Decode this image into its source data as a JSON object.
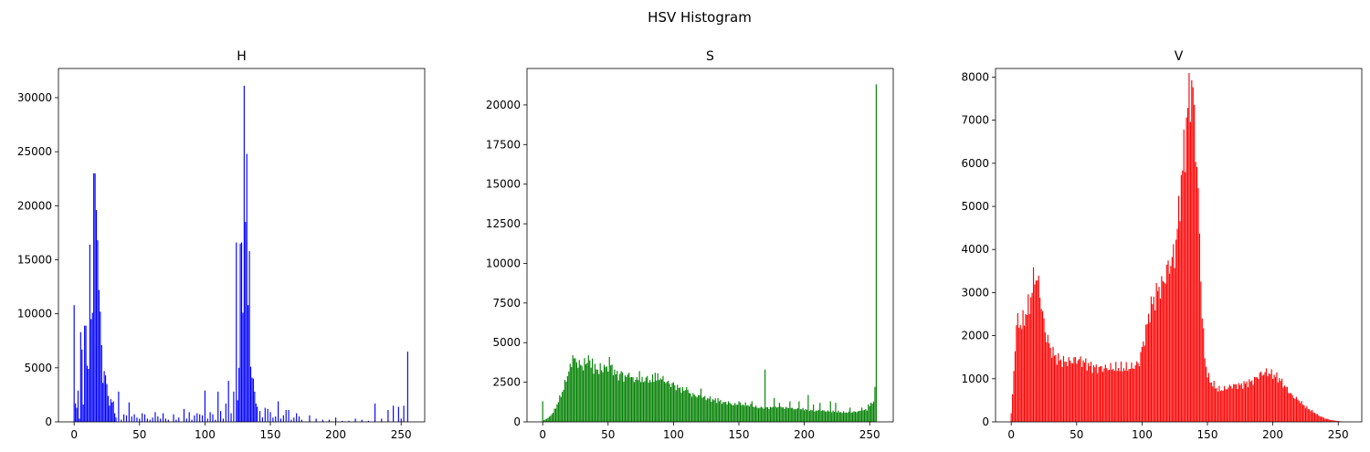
{
  "suptitle": "HSV Histogram",
  "chart_data": [
    {
      "type": "bar",
      "title": "H",
      "xlabel": "",
      "ylabel": "",
      "color": "#0000ff",
      "xlim": [
        -12,
        268
      ],
      "ylim": [
        0,
        32700
      ],
      "x_ticks": [
        0,
        50,
        100,
        150,
        200,
        250
      ],
      "y_ticks": [
        0,
        5000,
        10000,
        15000,
        20000,
        25000,
        30000
      ],
      "points": [
        [
          0,
          10800
        ],
        [
          1,
          1700
        ],
        [
          2,
          1300
        ],
        [
          3,
          2900
        ],
        [
          4,
          300
        ],
        [
          5,
          8300
        ],
        [
          6,
          6700
        ],
        [
          7,
          1600
        ],
        [
          8,
          8900
        ],
        [
          9,
          8900
        ],
        [
          10,
          5200
        ],
        [
          11,
          4900
        ],
        [
          12,
          16400
        ],
        [
          13,
          9500
        ],
        [
          14,
          10100
        ],
        [
          15,
          23000
        ],
        [
          16,
          23000
        ],
        [
          17,
          19600
        ],
        [
          18,
          16800
        ],
        [
          19,
          12200
        ],
        [
          20,
          10200
        ],
        [
          21,
          7100
        ],
        [
          22,
          3600
        ],
        [
          23,
          4700
        ],
        [
          24,
          4300
        ],
        [
          25,
          3500
        ],
        [
          26,
          2400
        ],
        [
          27,
          1500
        ],
        [
          28,
          2100
        ],
        [
          29,
          1800
        ],
        [
          30,
          1900
        ],
        [
          31,
          800
        ],
        [
          32,
          400
        ],
        [
          34,
          2800
        ],
        [
          36,
          200
        ],
        [
          38,
          700
        ],
        [
          40,
          600
        ],
        [
          42,
          1800
        ],
        [
          44,
          500
        ],
        [
          46,
          700
        ],
        [
          48,
          400
        ],
        [
          50,
          300
        ],
        [
          52,
          800
        ],
        [
          54,
          700
        ],
        [
          56,
          300
        ],
        [
          58,
          200
        ],
        [
          60,
          400
        ],
        [
          62,
          900
        ],
        [
          64,
          500
        ],
        [
          66,
          300
        ],
        [
          68,
          800
        ],
        [
          70,
          300
        ],
        [
          72,
          200
        ],
        [
          76,
          700
        ],
        [
          78,
          200
        ],
        [
          80,
          400
        ],
        [
          84,
          1200
        ],
        [
          86,
          300
        ],
        [
          88,
          900
        ],
        [
          90,
          200
        ],
        [
          92,
          600
        ],
        [
          94,
          800
        ],
        [
          96,
          700
        ],
        [
          98,
          600
        ],
        [
          100,
          2900
        ],
        [
          102,
          300
        ],
        [
          104,
          900
        ],
        [
          106,
          700
        ],
        [
          108,
          200
        ],
        [
          110,
          2800
        ],
        [
          112,
          1000
        ],
        [
          114,
          300
        ],
        [
          116,
          1700
        ],
        [
          118,
          3800
        ],
        [
          120,
          800
        ],
        [
          122,
          2800
        ],
        [
          124,
          16600
        ],
        [
          125,
          2000
        ],
        [
          126,
          5000
        ],
        [
          127,
          16500
        ],
        [
          128,
          16600
        ],
        [
          129,
          10100
        ],
        [
          130,
          31100
        ],
        [
          131,
          18500
        ],
        [
          132,
          24800
        ],
        [
          133,
          10800
        ],
        [
          134,
          15800
        ],
        [
          135,
          5100
        ],
        [
          136,
          4100
        ],
        [
          137,
          4000
        ],
        [
          138,
          2800
        ],
        [
          139,
          1700
        ],
        [
          140,
          1400
        ],
        [
          142,
          1000
        ],
        [
          144,
          400
        ],
        [
          146,
          1300
        ],
        [
          148,
          1200
        ],
        [
          150,
          900
        ],
        [
          152,
          400
        ],
        [
          154,
          500
        ],
        [
          156,
          1900
        ],
        [
          158,
          300
        ],
        [
          160,
          600
        ],
        [
          162,
          1100
        ],
        [
          164,
          1100
        ],
        [
          166,
          200
        ],
        [
          168,
          400
        ],
        [
          170,
          800
        ],
        [
          172,
          500
        ],
        [
          174,
          200
        ],
        [
          180,
          600
        ],
        [
          185,
          300
        ],
        [
          190,
          200
        ],
        [
          195,
          200
        ],
        [
          200,
          400
        ],
        [
          205,
          100
        ],
        [
          210,
          100
        ],
        [
          215,
          300
        ],
        [
          220,
          200
        ],
        [
          225,
          100
        ],
        [
          230,
          1700
        ],
        [
          235,
          300
        ],
        [
          240,
          1100
        ],
        [
          244,
          1500
        ],
        [
          248,
          1400
        ],
        [
          250,
          300
        ],
        [
          252,
          1500
        ],
        [
          255,
          6500
        ]
      ]
    },
    {
      "type": "bar",
      "title": "S",
      "xlabel": "",
      "ylabel": "",
      "color": "#008000",
      "xlim": [
        -12,
        268
      ],
      "ylim": [
        0,
        22300
      ],
      "x_ticks": [
        0,
        50,
        100,
        150,
        200,
        250
      ],
      "y_ticks": [
        0,
        2500,
        5000,
        7500,
        10000,
        12500,
        15000,
        17500,
        20000
      ],
      "anchors": [
        [
          0,
          1300
        ],
        [
          1,
          100
        ],
        [
          5,
          300
        ],
        [
          8,
          600
        ],
        [
          10,
          900
        ],
        [
          12,
          1300
        ],
        [
          14,
          1700
        ],
        [
          16,
          2100
        ],
        [
          18,
          2700
        ],
        [
          20,
          3200
        ],
        [
          22,
          3600
        ],
        [
          24,
          3900
        ],
        [
          26,
          3800
        ],
        [
          28,
          3600
        ],
        [
          30,
          3500
        ],
        [
          32,
          3700
        ],
        [
          35,
          3600
        ],
        [
          38,
          3400
        ],
        [
          42,
          3300
        ],
        [
          45,
          3200
        ],
        [
          48,
          3300
        ],
        [
          52,
          3500
        ],
        [
          56,
          3000
        ],
        [
          60,
          2900
        ],
        [
          65,
          2800
        ],
        [
          70,
          2700
        ],
        [
          75,
          2600
        ],
        [
          80,
          2600
        ],
        [
          85,
          2700
        ],
        [
          90,
          2800
        ],
        [
          95,
          2500
        ],
        [
          100,
          2300
        ],
        [
          105,
          2100
        ],
        [
          110,
          1900
        ],
        [
          115,
          1700
        ],
        [
          120,
          1600
        ],
        [
          125,
          1500
        ],
        [
          130,
          1400
        ],
        [
          135,
          1300
        ],
        [
          140,
          1200
        ],
        [
          145,
          1100
        ],
        [
          150,
          1100
        ],
        [
          155,
          1100
        ],
        [
          160,
          1000
        ],
        [
          165,
          900
        ],
        [
          170,
          900
        ],
        [
          175,
          900
        ],
        [
          180,
          900
        ],
        [
          185,
          900
        ],
        [
          190,
          850
        ],
        [
          195,
          800
        ],
        [
          200,
          800
        ],
        [
          205,
          750
        ],
        [
          210,
          700
        ],
        [
          215,
          700
        ],
        [
          220,
          650
        ],
        [
          225,
          650
        ],
        [
          230,
          600
        ],
        [
          235,
          600
        ],
        [
          240,
          650
        ],
        [
          245,
          700
        ],
        [
          248,
          800
        ],
        [
          250,
          1000
        ],
        [
          252,
          1300
        ],
        [
          253,
          1200
        ],
        [
          254,
          2200
        ]
      ],
      "spikes": [
        [
          0,
          1300
        ],
        [
          23,
          4200
        ],
        [
          25,
          4000
        ],
        [
          28,
          3900
        ],
        [
          35,
          4200
        ],
        [
          38,
          4000
        ],
        [
          44,
          3700
        ],
        [
          47,
          3600
        ],
        [
          51,
          4100
        ],
        [
          55,
          3300
        ],
        [
          60,
          3200
        ],
        [
          66,
          3100
        ],
        [
          74,
          3200
        ],
        [
          79,
          2800
        ],
        [
          86,
          3100
        ],
        [
          92,
          2900
        ],
        [
          100,
          2500
        ],
        [
          110,
          2200
        ],
        [
          121,
          2100
        ],
        [
          128,
          1600
        ],
        [
          134,
          1500
        ],
        [
          142,
          1300
        ],
        [
          150,
          1300
        ],
        [
          160,
          1300
        ],
        [
          170,
          3300
        ],
        [
          177,
          1500
        ],
        [
          181,
          1200
        ],
        [
          189,
          1300
        ],
        [
          196,
          1300
        ],
        [
          203,
          1700
        ],
        [
          207,
          1100
        ],
        [
          212,
          1200
        ],
        [
          220,
          1300
        ],
        [
          224,
          1200
        ],
        [
          235,
          900
        ],
        [
          244,
          900
        ],
        [
          249,
          1100
        ],
        [
          255,
          21300
        ]
      ]
    },
    {
      "type": "bar",
      "title": "V",
      "xlabel": "",
      "ylabel": "",
      "color": "#ff0000",
      "xlim": [
        -12,
        268
      ],
      "ylim": [
        0,
        8200
      ],
      "x_ticks": [
        0,
        50,
        100,
        150,
        200,
        250
      ],
      "y_ticks": [
        0,
        1000,
        2000,
        3000,
        4000,
        5000,
        6000,
        7000,
        8000
      ],
      "anchors": [
        [
          0,
          200
        ],
        [
          1,
          600
        ],
        [
          2,
          1200
        ],
        [
          3,
          1700
        ],
        [
          4,
          2300
        ],
        [
          6,
          2300
        ],
        [
          8,
          2250
        ],
        [
          10,
          2400
        ],
        [
          12,
          2600
        ],
        [
          14,
          2700
        ],
        [
          16,
          3100
        ],
        [
          18,
          3400
        ],
        [
          20,
          3300
        ],
        [
          22,
          3000
        ],
        [
          24,
          2500
        ],
        [
          26,
          2100
        ],
        [
          28,
          1900
        ],
        [
          30,
          1700
        ],
        [
          33,
          1550
        ],
        [
          36,
          1450
        ],
        [
          40,
          1400
        ],
        [
          45,
          1400
        ],
        [
          50,
          1450
        ],
        [
          55,
          1400
        ],
        [
          60,
          1300
        ],
        [
          65,
          1250
        ],
        [
          70,
          1250
        ],
        [
          75,
          1250
        ],
        [
          80,
          1250
        ],
        [
          85,
          1250
        ],
        [
          90,
          1250
        ],
        [
          95,
          1300
        ],
        [
          98,
          1400
        ],
        [
          100,
          1700
        ],
        [
          103,
          2100
        ],
        [
          106,
          2600
        ],
        [
          110,
          2900
        ],
        [
          113,
          3100
        ],
        [
          116,
          3200
        ],
        [
          119,
          3500
        ],
        [
          122,
          3700
        ],
        [
          125,
          3900
        ],
        [
          128,
          4800
        ],
        [
          130,
          5600
        ],
        [
          133,
          6500
        ],
        [
          135,
          7300
        ],
        [
          137,
          7700
        ],
        [
          138,
          7850
        ],
        [
          139,
          7600
        ],
        [
          140,
          7000
        ],
        [
          142,
          6000
        ],
        [
          144,
          4300
        ],
        [
          146,
          2500
        ],
        [
          148,
          1500
        ],
        [
          150,
          1100
        ],
        [
          152,
          950
        ],
        [
          155,
          850
        ],
        [
          158,
          750
        ],
        [
          162,
          750
        ],
        [
          166,
          800
        ],
        [
          170,
          850
        ],
        [
          175,
          850
        ],
        [
          180,
          900
        ],
        [
          185,
          950
        ],
        [
          190,
          1100
        ],
        [
          195,
          1150
        ],
        [
          200,
          1100
        ],
        [
          205,
          1000
        ],
        [
          210,
          800
        ],
        [
          215,
          600
        ],
        [
          220,
          500
        ],
        [
          225,
          350
        ],
        [
          230,
          250
        ],
        [
          235,
          150
        ],
        [
          240,
          80
        ],
        [
          245,
          40
        ],
        [
          250,
          20
        ],
        [
          255,
          0
        ]
      ]
    }
  ]
}
